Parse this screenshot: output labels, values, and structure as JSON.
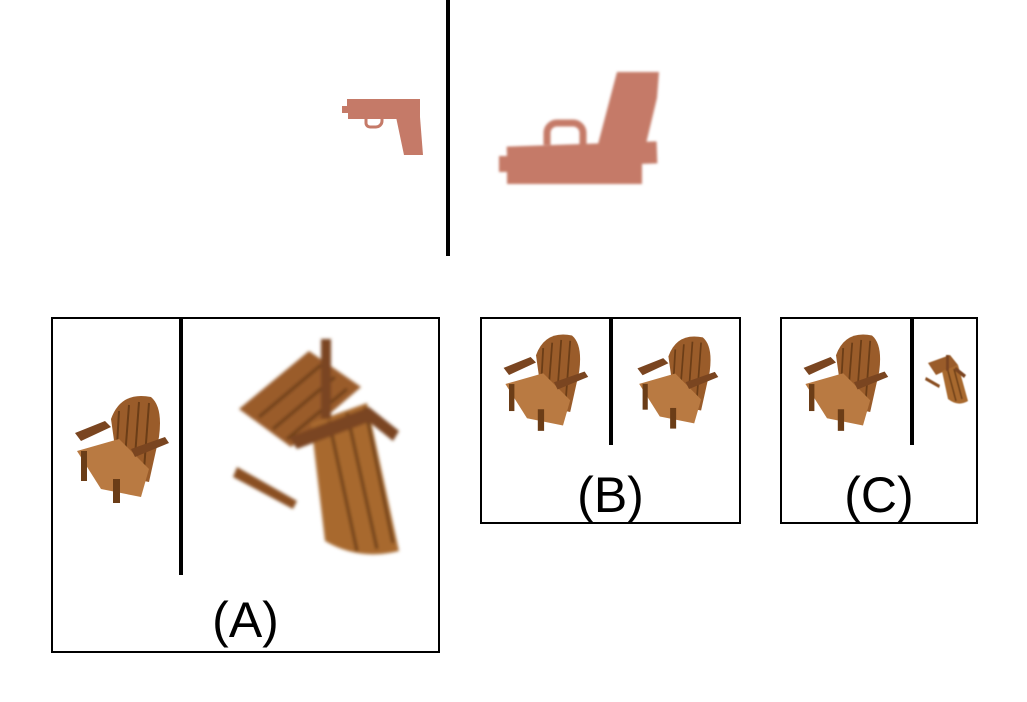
{
  "prompt": {
    "object_color": "#c57a68",
    "small_object_icon": "pistol-icon",
    "large_object_icon": "pistol-icon"
  },
  "options": [
    {
      "label": "(A)",
      "left_icon": "chair-icon",
      "right_icon": "chair-icon"
    },
    {
      "label": "(B)",
      "left_icon": "chair-icon",
      "right_icon": "chair-icon"
    },
    {
      "label": "(C)",
      "left_icon": "chair-icon",
      "right_icon": "chair-icon"
    }
  ],
  "colors": {
    "wood_dark": "#6b3d17",
    "wood_mid": "#9a5c2a",
    "wood_light": "#b97a42",
    "line": "#000000"
  }
}
